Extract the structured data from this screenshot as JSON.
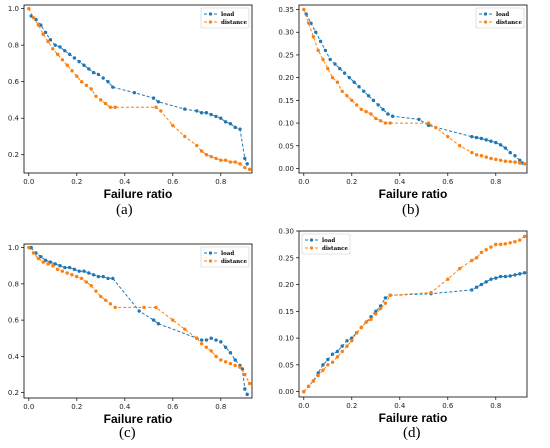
{
  "chart_data": [
    {
      "type": "line",
      "caption": "(a)",
      "xlabel": "Failure ratio",
      "legend_position": "top-right",
      "xlim": [
        -0.02,
        0.93
      ],
      "ylim": [
        0.1,
        1.02
      ],
      "xticks": [
        "0.0",
        "0.2",
        "0.4",
        "0.6",
        "0.8"
      ],
      "xtick_values": [
        0,
        0.2,
        0.4,
        0.6,
        0.8
      ],
      "yticks": [
        "0.2",
        "0.4",
        "0.6",
        "0.8",
        "1.0"
      ],
      "ytick_values": [
        0.2,
        0.4,
        0.6,
        0.8,
        1.0
      ],
      "series": [
        {
          "name": "load",
          "color": "#1f77b4",
          "x": [
            0.01,
            0.03,
            0.05,
            0.07,
            0.09,
            0.11,
            0.13,
            0.15,
            0.17,
            0.19,
            0.21,
            0.23,
            0.25,
            0.27,
            0.29,
            0.31,
            0.33,
            0.35,
            0.44,
            0.52,
            0.54,
            0.65,
            0.7,
            0.72,
            0.74,
            0.76,
            0.78,
            0.8,
            0.82,
            0.84,
            0.86,
            0.88,
            0.9,
            0.91
          ],
          "y": [
            0.96,
            0.94,
            0.91,
            0.87,
            0.83,
            0.8,
            0.79,
            0.77,
            0.75,
            0.73,
            0.71,
            0.69,
            0.67,
            0.65,
            0.64,
            0.62,
            0.6,
            0.57,
            0.54,
            0.51,
            0.49,
            0.45,
            0.44,
            0.43,
            0.43,
            0.42,
            0.41,
            0.4,
            0.38,
            0.37,
            0.35,
            0.34,
            0.18,
            0.15
          ]
        },
        {
          "name": "distance",
          "color": "#ff7f0e",
          "x": [
            0.0,
            0.02,
            0.04,
            0.06,
            0.08,
            0.1,
            0.12,
            0.14,
            0.16,
            0.18,
            0.2,
            0.22,
            0.24,
            0.26,
            0.28,
            0.3,
            0.32,
            0.34,
            0.36,
            0.53,
            0.55,
            0.6,
            0.65,
            0.7,
            0.72,
            0.74,
            0.76,
            0.78,
            0.8,
            0.82,
            0.84,
            0.86,
            0.88,
            0.9,
            0.92
          ],
          "y": [
            1.0,
            0.95,
            0.91,
            0.86,
            0.82,
            0.78,
            0.75,
            0.72,
            0.69,
            0.66,
            0.63,
            0.6,
            0.58,
            0.56,
            0.52,
            0.5,
            0.48,
            0.46,
            0.46,
            0.46,
            0.44,
            0.36,
            0.3,
            0.25,
            0.22,
            0.2,
            0.19,
            0.18,
            0.17,
            0.17,
            0.16,
            0.16,
            0.15,
            0.13,
            0.12
          ]
        }
      ]
    },
    {
      "type": "line",
      "caption": "(b)",
      "xlabel": "Failure ratio",
      "legend_position": "top-right",
      "xlim": [
        -0.02,
        0.93
      ],
      "ylim": [
        -0.01,
        0.36
      ],
      "xticks": [
        "0.0",
        "0.2",
        "0.4",
        "0.6",
        "0.8"
      ],
      "xtick_values": [
        0,
        0.2,
        0.4,
        0.6,
        0.8
      ],
      "yticks": [
        "0.00",
        "0.05",
        "0.10",
        "0.15",
        "0.20",
        "0.25",
        "0.30",
        "0.35"
      ],
      "ytick_values": [
        0,
        0.05,
        0.1,
        0.15,
        0.2,
        0.25,
        0.3,
        0.35
      ],
      "series": [
        {
          "name": "load",
          "color": "#1f77b4",
          "x": [
            0.01,
            0.03,
            0.05,
            0.07,
            0.09,
            0.11,
            0.13,
            0.15,
            0.17,
            0.19,
            0.21,
            0.23,
            0.25,
            0.27,
            0.29,
            0.31,
            0.33,
            0.35,
            0.37,
            0.48,
            0.52,
            0.7,
            0.72,
            0.74,
            0.76,
            0.78,
            0.8,
            0.82,
            0.84,
            0.86,
            0.88,
            0.9,
            0.91
          ],
          "y": [
            0.34,
            0.32,
            0.3,
            0.28,
            0.26,
            0.24,
            0.23,
            0.22,
            0.21,
            0.2,
            0.19,
            0.18,
            0.17,
            0.16,
            0.15,
            0.14,
            0.13,
            0.12,
            0.115,
            0.108,
            0.095,
            0.07,
            0.068,
            0.066,
            0.063,
            0.06,
            0.057,
            0.052,
            0.045,
            0.035,
            0.028,
            0.018,
            0.012
          ]
        },
        {
          "name": "distance",
          "color": "#ff7f0e",
          "x": [
            0.0,
            0.02,
            0.04,
            0.06,
            0.08,
            0.1,
            0.12,
            0.14,
            0.16,
            0.18,
            0.2,
            0.22,
            0.24,
            0.26,
            0.28,
            0.3,
            0.32,
            0.34,
            0.36,
            0.52,
            0.55,
            0.6,
            0.65,
            0.7,
            0.72,
            0.74,
            0.76,
            0.78,
            0.8,
            0.82,
            0.84,
            0.86,
            0.88,
            0.9,
            0.92
          ],
          "y": [
            0.35,
            0.32,
            0.29,
            0.26,
            0.24,
            0.22,
            0.2,
            0.19,
            0.17,
            0.16,
            0.15,
            0.14,
            0.13,
            0.125,
            0.12,
            0.11,
            0.105,
            0.1,
            0.1,
            0.1,
            0.09,
            0.07,
            0.05,
            0.035,
            0.03,
            0.028,
            0.025,
            0.022,
            0.02,
            0.018,
            0.016,
            0.015,
            0.014,
            0.012,
            0.01
          ]
        }
      ]
    },
    {
      "type": "line",
      "caption": "(c)",
      "xlabel": "Failure ratio",
      "legend_position": "top-right",
      "xlim": [
        -0.02,
        0.93
      ],
      "ylim": [
        0.17,
        1.02
      ],
      "xticks": [
        "0.0",
        "0.2",
        "0.4",
        "0.6",
        "0.8"
      ],
      "xtick_values": [
        0,
        0.2,
        0.4,
        0.6,
        0.8
      ],
      "yticks": [
        "0.2",
        "0.4",
        "0.6",
        "0.8",
        "1.0"
      ],
      "ytick_values": [
        0.2,
        0.4,
        0.6,
        0.8,
        1.0
      ],
      "series": [
        {
          "name": "load",
          "color": "#1f77b4",
          "x": [
            0.01,
            0.03,
            0.05,
            0.07,
            0.09,
            0.11,
            0.13,
            0.15,
            0.17,
            0.19,
            0.21,
            0.23,
            0.25,
            0.27,
            0.29,
            0.31,
            0.33,
            0.35,
            0.46,
            0.52,
            0.54,
            0.7,
            0.72,
            0.74,
            0.76,
            0.78,
            0.8,
            0.82,
            0.84,
            0.86,
            0.88,
            0.89,
            0.9,
            0.91
          ],
          "y": [
            1.0,
            0.97,
            0.95,
            0.93,
            0.92,
            0.91,
            0.9,
            0.89,
            0.89,
            0.88,
            0.87,
            0.87,
            0.86,
            0.85,
            0.84,
            0.84,
            0.83,
            0.83,
            0.65,
            0.6,
            0.58,
            0.5,
            0.49,
            0.49,
            0.5,
            0.49,
            0.48,
            0.45,
            0.42,
            0.38,
            0.35,
            0.33,
            0.22,
            0.19
          ]
        },
        {
          "name": "distance",
          "color": "#ff7f0e",
          "x": [
            0.0,
            0.02,
            0.04,
            0.06,
            0.08,
            0.1,
            0.12,
            0.14,
            0.16,
            0.18,
            0.2,
            0.22,
            0.24,
            0.26,
            0.28,
            0.3,
            0.32,
            0.34,
            0.36,
            0.48,
            0.53,
            0.6,
            0.65,
            0.7,
            0.72,
            0.74,
            0.76,
            0.78,
            0.8,
            0.82,
            0.84,
            0.86,
            0.88,
            0.9,
            0.92
          ],
          "y": [
            1.0,
            0.97,
            0.94,
            0.92,
            0.91,
            0.9,
            0.88,
            0.87,
            0.86,
            0.85,
            0.84,
            0.83,
            0.81,
            0.79,
            0.76,
            0.73,
            0.71,
            0.69,
            0.67,
            0.67,
            0.67,
            0.6,
            0.55,
            0.5,
            0.47,
            0.45,
            0.43,
            0.4,
            0.38,
            0.37,
            0.36,
            0.35,
            0.34,
            0.3,
            0.25
          ]
        }
      ]
    },
    {
      "type": "line",
      "caption": "(d)",
      "xlabel": "Failure ratio",
      "legend_position": "top-left",
      "xlim": [
        -0.02,
        0.93
      ],
      "ylim": [
        -0.01,
        0.3
      ],
      "xticks": [
        "0.0",
        "0.2",
        "0.4",
        "0.6",
        "0.8"
      ],
      "xtick_values": [
        0,
        0.2,
        0.4,
        0.6,
        0.8
      ],
      "yticks": [
        "0.00",
        "0.05",
        "0.10",
        "0.15",
        "0.20",
        "0.25",
        "0.30"
      ],
      "ytick_values": [
        0,
        0.05,
        0.1,
        0.15,
        0.2,
        0.25,
        0.3
      ],
      "series": [
        {
          "name": "load",
          "color": "#1f77b4",
          "x": [
            0.0,
            0.02,
            0.04,
            0.06,
            0.08,
            0.1,
            0.12,
            0.14,
            0.16,
            0.18,
            0.2,
            0.22,
            0.24,
            0.26,
            0.28,
            0.3,
            0.32,
            0.34,
            0.36,
            0.53,
            0.7,
            0.72,
            0.74,
            0.76,
            0.78,
            0.8,
            0.82,
            0.84,
            0.86,
            0.88,
            0.9,
            0.92
          ],
          "y": [
            0.0,
            0.01,
            0.02,
            0.035,
            0.05,
            0.06,
            0.07,
            0.075,
            0.085,
            0.095,
            0.1,
            0.11,
            0.12,
            0.13,
            0.14,
            0.15,
            0.16,
            0.175,
            0.18,
            0.183,
            0.19,
            0.195,
            0.2,
            0.205,
            0.21,
            0.212,
            0.215,
            0.215,
            0.216,
            0.218,
            0.22,
            0.222
          ]
        },
        {
          "name": "distance",
          "color": "#ff7f0e",
          "x": [
            0.0,
            0.02,
            0.04,
            0.06,
            0.08,
            0.1,
            0.12,
            0.14,
            0.16,
            0.18,
            0.2,
            0.22,
            0.24,
            0.26,
            0.28,
            0.3,
            0.32,
            0.34,
            0.36,
            0.53,
            0.6,
            0.65,
            0.7,
            0.72,
            0.74,
            0.76,
            0.78,
            0.8,
            0.82,
            0.84,
            0.86,
            0.88,
            0.9,
            0.92
          ],
          "y": [
            0.0,
            0.01,
            0.02,
            0.03,
            0.04,
            0.05,
            0.055,
            0.065,
            0.075,
            0.085,
            0.095,
            0.11,
            0.12,
            0.13,
            0.135,
            0.145,
            0.155,
            0.165,
            0.18,
            0.185,
            0.21,
            0.23,
            0.245,
            0.25,
            0.26,
            0.265,
            0.27,
            0.275,
            0.275,
            0.276,
            0.278,
            0.28,
            0.283,
            0.29
          ]
        }
      ]
    }
  ]
}
